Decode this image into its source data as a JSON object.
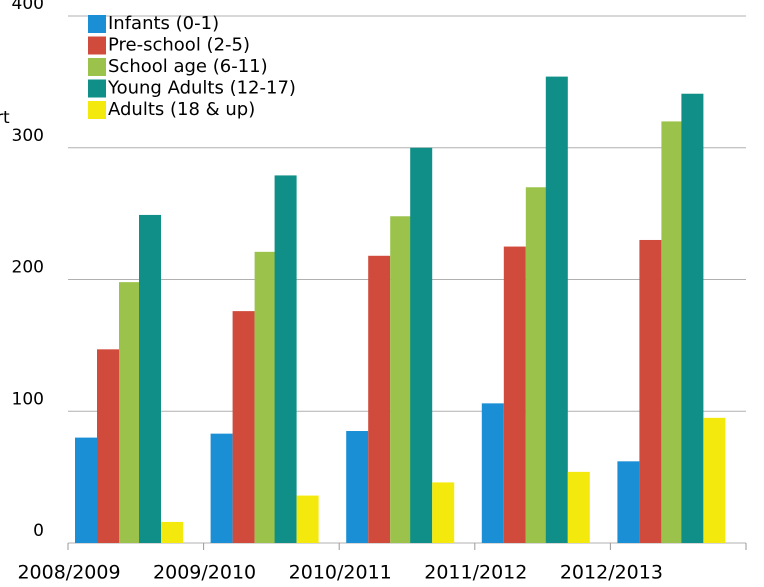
{
  "chart_data": {
    "type": "bar",
    "y_label": "rt",
    "categories": [
      "2008/2009",
      "2009/2010",
      "2010/2011",
      "2011/2012",
      "2012/2013"
    ],
    "series": [
      {
        "name": "Infants (0-1)",
        "color": "#1b8fd5",
        "values": [
          80,
          83,
          85,
          106,
          62
        ]
      },
      {
        "name": "Pre-school (2-5)",
        "color": "#d04b3b",
        "values": [
          147,
          176,
          218,
          225,
          230
        ]
      },
      {
        "name": "School age (6-11)",
        "color": "#9bc34b",
        "values": [
          198,
          221,
          248,
          270,
          320
        ]
      },
      {
        "name": "Young Adults (12-17)",
        "color": "#0f8f87",
        "values": [
          249,
          279,
          300,
          354,
          341
        ]
      },
      {
        "name": "Adults (18 & up)",
        "color": "#f4e90c",
        "values": [
          16,
          36,
          46,
          54,
          95
        ]
      }
    ],
    "ylim": [
      0,
      400
    ],
    "yticks": [
      0,
      100,
      200,
      300,
      400
    ],
    "grid": true,
    "legend": "top-left"
  }
}
